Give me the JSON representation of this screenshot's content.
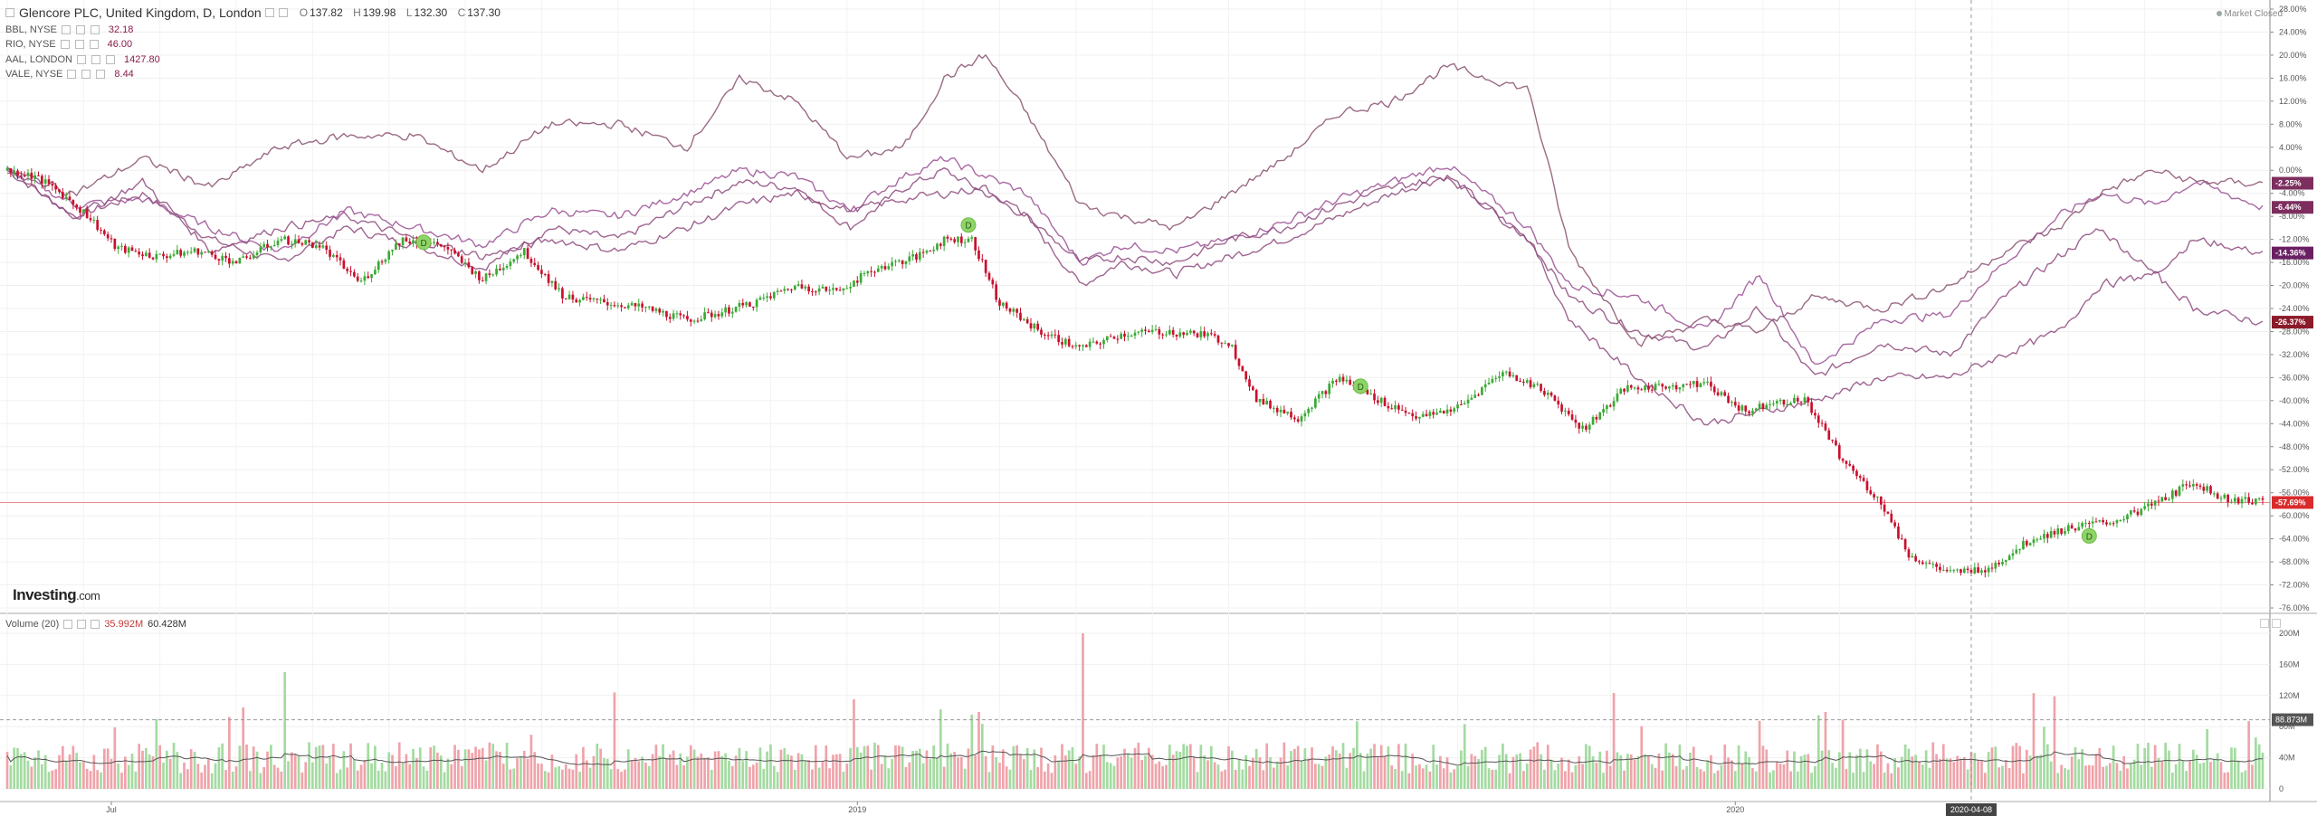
{
  "header": {
    "symbol": "Glencore PLC, United Kingdom, D, London",
    "ohlc": [
      {
        "key": "O",
        "value": "137.82"
      },
      {
        "key": "H",
        "value": "139.98"
      },
      {
        "key": "L",
        "value": "132.30"
      },
      {
        "key": "C",
        "value": "137.30"
      }
    ],
    "comparisons": [
      {
        "label": "BBL, NYSE",
        "value": "32.18"
      },
      {
        "label": "RIO, NYSE",
        "value": "46.00"
      },
      {
        "label": "AAL, LONDON",
        "value": "1427.80"
      },
      {
        "label": "VALE, NYSE",
        "value": "8.44"
      }
    ],
    "market_status": "Market Closed"
  },
  "brand": {
    "name": "Investing",
    "domain": ".com"
  },
  "volume_legend": {
    "label": "Volume (20)",
    "value": "35.992M",
    "ma_value": "60.428M"
  },
  "colors": {
    "up": "#3aaa35",
    "down": "#c8102e",
    "compare": "#8e4a7e",
    "compare_alt": "#9c5a8c",
    "vol_up": "#a3dba0",
    "vol_down": "#efa3aa",
    "ma": "#555555",
    "last_line": "#e06060",
    "dividend": "#8fd467"
  },
  "chart_data": {
    "type": "candlestick",
    "price_axis": {
      "scale": "percent",
      "ticks": [
        "28.00%",
        "24.00%",
        "20.00%",
        "16.00%",
        "12.00%",
        "8.00%",
        "4.00%",
        "0.00%",
        "-4.00%",
        "-8.00%",
        "-12.00%",
        "-16.00%",
        "-20.00%",
        "-24.00%",
        "-28.00%",
        "-32.00%",
        "-36.00%",
        "-40.00%",
        "-44.00%",
        "-48.00%",
        "-52.00%",
        "-56.00%",
        "-60.00%",
        "-64.00%",
        "-68.00%",
        "-72.00%",
        "-76.00%"
      ],
      "range": [
        -76,
        28
      ]
    },
    "volume_axis": {
      "ticks": [
        "200M",
        "160M",
        "120M",
        "80M",
        "40M",
        "0"
      ],
      "range": [
        0,
        200
      ]
    },
    "x_labels": [
      {
        "label": "Jul",
        "date_index": 30
      },
      {
        "label": "2019",
        "date_index": 245
      },
      {
        "label": "2020",
        "date_index": 498
      }
    ],
    "crosshair_label": "2020-04-08",
    "crosshair_index": 566,
    "last_values": [
      {
        "label": "-2.25%",
        "value": -2.25,
        "color": "#7d2e5e"
      },
      {
        "label": "-6.44%",
        "value": -6.44,
        "color": "#7d2e5e"
      },
      {
        "label": "-14.36%",
        "value": -14.36,
        "color": "#6a1f63"
      },
      {
        "label": "-26.37%",
        "value": -26.37,
        "color": "#8b1a2a"
      },
      {
        "label": "-57.69%",
        "value": -57.69,
        "color": "#d92b2b"
      }
    ],
    "volume_last_label": "88.873M",
    "volume_last_value": 88.873,
    "dividends": [
      {
        "label": "D",
        "date_index": 120,
        "value": -12.5
      },
      {
        "label": "D",
        "date_index": 277,
        "value": -9.5
      },
      {
        "label": "D",
        "date_index": 390,
        "value": -37.5
      },
      {
        "label": "D",
        "date_index": 600,
        "value": -63.5
      }
    ],
    "num_days": 650,
    "main_series_keypoints": [
      [
        0,
        0
      ],
      [
        10,
        -1
      ],
      [
        20,
        -4
      ],
      [
        30,
        -8
      ],
      [
        40,
        -13.5
      ],
      [
        55,
        -15
      ],
      [
        70,
        -14
      ],
      [
        85,
        -16
      ],
      [
        100,
        -12
      ],
      [
        115,
        -13
      ],
      [
        130,
        -19.5
      ],
      [
        145,
        -12
      ],
      [
        160,
        -13
      ],
      [
        175,
        -19
      ],
      [
        190,
        -14
      ],
      [
        205,
        -22
      ],
      [
        220,
        -23
      ],
      [
        235,
        -24
      ],
      [
        250,
        -26
      ],
      [
        260,
        -25
      ],
      [
        275,
        -23
      ],
      [
        290,
        -20
      ],
      [
        305,
        -21
      ],
      [
        320,
        -17
      ],
      [
        335,
        -15
      ],
      [
        345,
        -12
      ],
      [
        355,
        -12
      ],
      [
        365,
        -23
      ],
      [
        380,
        -28
      ],
      [
        395,
        -31
      ],
      [
        410,
        -28.5
      ],
      [
        425,
        -28
      ],
      [
        440,
        -28.5
      ],
      [
        450,
        -30
      ],
      [
        460,
        -40
      ],
      [
        475,
        -43
      ],
      [
        490,
        -36
      ],
      [
        505,
        -40
      ],
      [
        520,
        -43
      ],
      [
        535,
        -41
      ],
      [
        550,
        -35
      ],
      [
        565,
        -38
      ],
      [
        580,
        -45
      ],
      [
        595,
        -38
      ],
      [
        610,
        -37.5
      ],
      [
        625,
        -37
      ],
      [
        640,
        -42
      ],
      [
        650,
        -40
      ],
      [
        662,
        -40
      ],
      [
        675,
        -50
      ],
      [
        690,
        -58
      ],
      [
        700,
        -67
      ],
      [
        715,
        -70
      ],
      [
        730,
        -69
      ],
      [
        745,
        -64
      ],
      [
        760,
        -62
      ],
      [
        775,
        -61
      ],
      [
        790,
        -58
      ],
      [
        805,
        -54
      ],
      [
        815,
        -57
      ],
      [
        830,
        -57.5
      ]
    ],
    "compare_series_keypoints": [
      [
        [
          0,
          0
        ],
        [
          25,
          -8
        ],
        [
          50,
          -4
        ],
        [
          75,
          -12
        ],
        [
          100,
          -16
        ],
        [
          125,
          -10
        ],
        [
          150,
          -13
        ],
        [
          175,
          -17
        ],
        [
          200,
          -10
        ],
        [
          225,
          -12
        ],
        [
          250,
          -6
        ],
        [
          270,
          -2
        ],
        [
          290,
          -3
        ],
        [
          310,
          -10
        ],
        [
          330,
          -3
        ],
        [
          345,
          0
        ],
        [
          360,
          -4
        ],
        [
          375,
          -8
        ],
        [
          395,
          -20
        ],
        [
          410,
          -16
        ],
        [
          430,
          -18
        ],
        [
          450,
          -15
        ],
        [
          470,
          -12
        ],
        [
          490,
          -8
        ],
        [
          510,
          -4
        ],
        [
          530,
          -1
        ],
        [
          560,
          -12
        ],
        [
          575,
          -22
        ],
        [
          600,
          -28
        ],
        [
          625,
          -31
        ],
        [
          645,
          -24
        ],
        [
          665,
          -36
        ],
        [
          690,
          -30
        ],
        [
          715,
          -32
        ],
        [
          735,
          -22
        ],
        [
          755,
          -15
        ],
        [
          770,
          -10
        ],
        [
          790,
          -18
        ],
        [
          805,
          -12
        ],
        [
          830,
          -14.4
        ]
      ],
      [
        [
          0,
          0
        ],
        [
          25,
          -6
        ],
        [
          50,
          -5
        ],
        [
          75,
          -10
        ],
        [
          100,
          -14
        ],
        [
          125,
          -7
        ],
        [
          150,
          -10
        ],
        [
          175,
          -13
        ],
        [
          200,
          -7
        ],
        [
          225,
          -8
        ],
        [
          250,
          -4
        ],
        [
          270,
          0
        ],
        [
          290,
          -1
        ],
        [
          310,
          -7
        ],
        [
          330,
          -1
        ],
        [
          345,
          2
        ],
        [
          360,
          -1
        ],
        [
          375,
          -4
        ],
        [
          395,
          -16
        ],
        [
          410,
          -13
        ],
        [
          430,
          -14
        ],
        [
          450,
          -12
        ],
        [
          470,
          -9
        ],
        [
          490,
          -5
        ],
        [
          510,
          -2
        ],
        [
          530,
          1
        ],
        [
          560,
          -10
        ],
        [
          575,
          -20
        ],
        [
          600,
          -22
        ],
        [
          625,
          -28
        ],
        [
          645,
          -18
        ],
        [
          665,
          -34
        ],
        [
          690,
          -26
        ],
        [
          715,
          -25
        ],
        [
          735,
          -16
        ],
        [
          755,
          -8
        ],
        [
          770,
          -4
        ],
        [
          790,
          -6
        ],
        [
          805,
          -2
        ],
        [
          830,
          -6.44
        ]
      ],
      [
        [
          0,
          0
        ],
        [
          25,
          -8
        ],
        [
          50,
          -2
        ],
        [
          75,
          -14
        ],
        [
          100,
          -10
        ],
        [
          125,
          -8
        ],
        [
          150,
          -12
        ],
        [
          175,
          -15
        ],
        [
          200,
          -12
        ],
        [
          225,
          -14
        ],
        [
          250,
          -10
        ],
        [
          270,
          -6
        ],
        [
          290,
          -4
        ],
        [
          310,
          -7
        ],
        [
          330,
          -5
        ],
        [
          345,
          -4
        ],
        [
          360,
          -3
        ],
        [
          375,
          -8
        ],
        [
          395,
          -16
        ],
        [
          410,
          -15
        ],
        [
          430,
          -16
        ],
        [
          450,
          -12
        ],
        [
          470,
          -10
        ],
        [
          490,
          -6
        ],
        [
          510,
          -3
        ],
        [
          530,
          -1
        ],
        [
          560,
          -12
        ],
        [
          575,
          -26
        ],
        [
          600,
          -36
        ],
        [
          625,
          -44
        ],
        [
          645,
          -42
        ],
        [
          665,
          -40
        ],
        [
          690,
          -36
        ],
        [
          715,
          -36
        ],
        [
          735,
          -32
        ],
        [
          755,
          -28
        ],
        [
          770,
          -20
        ],
        [
          790,
          -18
        ],
        [
          805,
          -24
        ],
        [
          830,
          -26.37
        ]
      ],
      [
        [
          0,
          0
        ],
        [
          25,
          -4
        ],
        [
          50,
          2
        ],
        [
          75,
          -3
        ],
        [
          100,
          4
        ],
        [
          125,
          6
        ],
        [
          150,
          6
        ],
        [
          175,
          0
        ],
        [
          200,
          8
        ],
        [
          225,
          8
        ],
        [
          250,
          4
        ],
        [
          270,
          16
        ],
        [
          290,
          12
        ],
        [
          310,
          2
        ],
        [
          330,
          4
        ],
        [
          345,
          16
        ],
        [
          360,
          20
        ],
        [
          375,
          10
        ],
        [
          395,
          -6
        ],
        [
          410,
          -8
        ],
        [
          430,
          -10
        ],
        [
          450,
          -4
        ],
        [
          470,
          2
        ],
        [
          490,
          10
        ],
        [
          510,
          12
        ],
        [
          530,
          18
        ],
        [
          560,
          14
        ],
        [
          575,
          -14
        ],
        [
          600,
          -30
        ],
        [
          625,
          -26
        ],
        [
          645,
          -28
        ],
        [
          665,
          -22
        ],
        [
          690,
          -24
        ],
        [
          715,
          -20
        ],
        [
          735,
          -14
        ],
        [
          755,
          -10
        ],
        [
          770,
          -4
        ],
        [
          790,
          0
        ],
        [
          805,
          -2
        ],
        [
          830,
          -2.25
        ]
      ]
    ]
  }
}
